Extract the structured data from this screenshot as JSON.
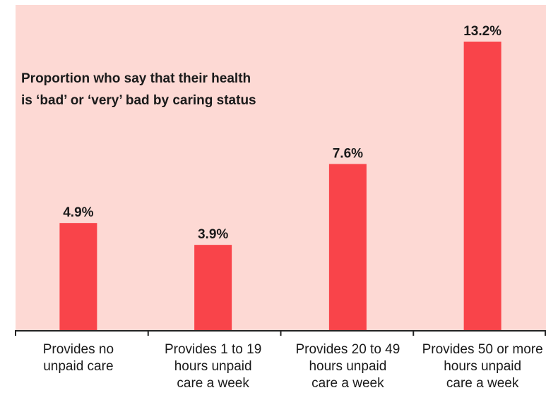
{
  "chart_data": {
    "type": "bar",
    "title_lines": [
      "Proportion who say that their health",
      "is ‘bad’ or ‘very’ bad by caring status"
    ],
    "categories": [
      [
        "Provides no",
        "unpaid care"
      ],
      [
        "Provides 1 to 19",
        "hours unpaid",
        "care a week"
      ],
      [
        "Provides 20  to 49",
        "hours unpaid",
        "care a week"
      ],
      [
        "Provides 50 or more",
        "hours unpaid",
        "care a week"
      ]
    ],
    "values": [
      4.9,
      3.9,
      7.6,
      13.2
    ],
    "value_labels": [
      "4.9%",
      "3.9%",
      "7.6%",
      "13.2%"
    ],
    "ylim": [
      0,
      14.2
    ],
    "grid": false,
    "legend": "none",
    "colors": {
      "bar": "#f9444a",
      "background": "#fdd9d4",
      "axis": "#222222",
      "text": "#1a1a1a"
    }
  }
}
